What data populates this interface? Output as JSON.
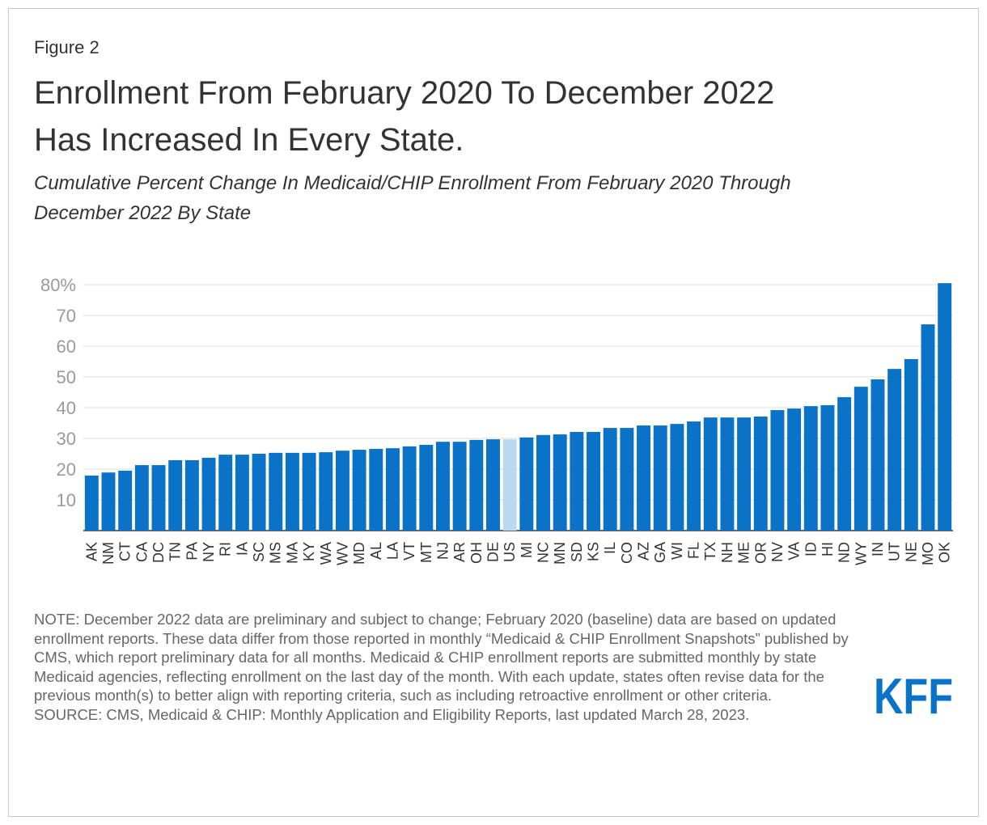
{
  "figure_label": "Figure 2",
  "logo": "KFF",
  "note": "NOTE: December 2022 data are preliminary and subject to change; February 2020 (baseline) data are based on updated enrollment reports. These data differ from those reported in monthly “Medicaid & CHIP Enrollment Snapshots” published by CMS, which report preliminary data for all months. Medicaid & CHIP enrollment reports are submitted monthly by state Medicaid agencies, reflecting enrollment on the last day of the month. With each update, states often revise data for the previous month(s) to better align with reporting criteria, such as including retroactive enrollment or other criteria.",
  "source": "SOURCE: CMS, Medicaid & CHIP: Monthly Application and Eligibility Reports, last updated March 28, 2023.",
  "chart_data": {
    "type": "bar",
    "title": [
      "Enrollment From February 2020 To December 2022",
      "Has Increased In Every State."
    ],
    "subtitle": [
      "Cumulative Percent Change In Medicaid/CHIP Enrollment From February 2020 Through",
      "December 2022 By State"
    ],
    "categories": [
      "AK",
      "NM",
      "CT",
      "CA",
      "DC",
      "TN",
      "PA",
      "NY",
      "RI",
      "IA",
      "SC",
      "MS",
      "MA",
      "KY",
      "WA",
      "WV",
      "MD",
      "AL",
      "LA",
      "VT",
      "MT",
      "NJ",
      "AR",
      "OH",
      "DE",
      "US",
      "MI",
      "NC",
      "MN",
      "SD",
      "KS",
      "IL",
      "CO",
      "AZ",
      "GA",
      "WI",
      "FL",
      "TX",
      "NH",
      "ME",
      "OR",
      "NV",
      "VA",
      "ID",
      "HI",
      "ND",
      "WY",
      "IN",
      "UT",
      "NE",
      "MO",
      "OK"
    ],
    "values": [
      17.9,
      18.9,
      19.5,
      21.3,
      21.3,
      22.9,
      22.9,
      23.7,
      24.7,
      24.7,
      25.0,
      25.3,
      25.3,
      25.3,
      25.5,
      26.0,
      26.3,
      26.6,
      26.8,
      27.4,
      27.9,
      28.9,
      28.9,
      29.5,
      29.7,
      29.7,
      30.3,
      31.1,
      31.3,
      32.1,
      32.1,
      33.4,
      33.4,
      34.2,
      34.2,
      34.7,
      35.5,
      36.8,
      36.8,
      36.8,
      37.1,
      39.2,
      39.7,
      40.5,
      40.8,
      43.4,
      46.8,
      49.2,
      52.6,
      55.8,
      67.1,
      80.5
    ],
    "color": "#0b73c7",
    "highlight": {
      "category": "US",
      "color": "#bcd9f0"
    },
    "ylim": [
      0,
      80
    ],
    "yticks": [
      10,
      20,
      30,
      40,
      50,
      60,
      70,
      {
        "value": 80,
        "label": "80%"
      }
    ],
    "grid": true
  }
}
